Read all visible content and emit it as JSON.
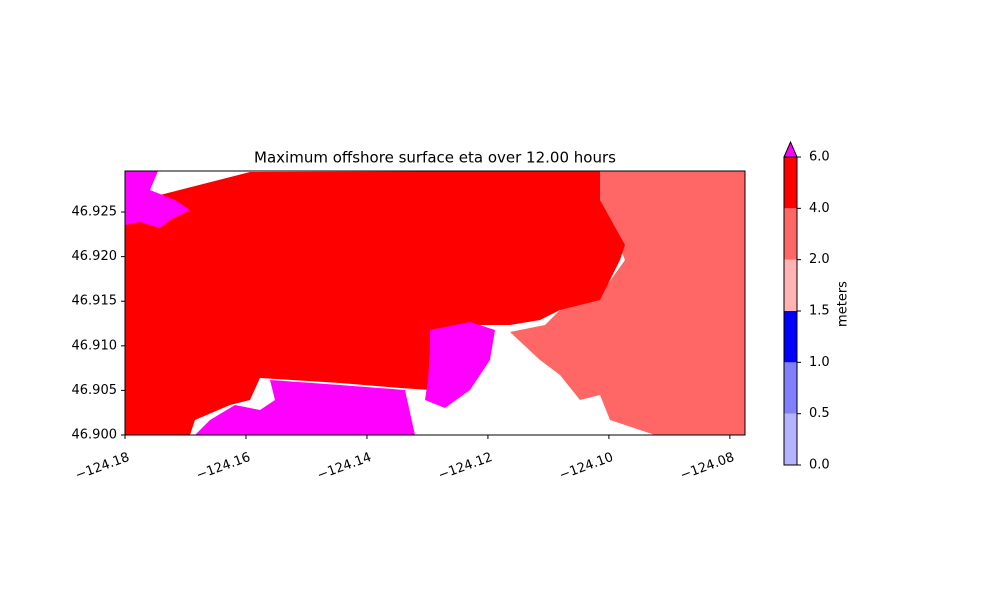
{
  "chart_data": {
    "type": "contour",
    "title": "Maximum offshore surface eta over 12.00 hours",
    "xlim": [
      -124.18,
      -124.0775
    ],
    "ylim": [
      46.9,
      46.9296
    ],
    "xticks": [
      {
        "value": -124.18,
        "label": "−124.18"
      },
      {
        "value": -124.16,
        "label": "−124.16"
      },
      {
        "value": -124.14,
        "label": "−124.14"
      },
      {
        "value": -124.12,
        "label": "−124.12"
      },
      {
        "value": -124.1,
        "label": "−124.10"
      },
      {
        "value": -124.08,
        "label": "−124.08"
      }
    ],
    "yticks": [
      {
        "value": 46.9,
        "label": "46.900"
      },
      {
        "value": 46.905,
        "label": "46.905"
      },
      {
        "value": 46.91,
        "label": "46.910"
      },
      {
        "value": 46.915,
        "label": "46.915"
      },
      {
        "value": 46.92,
        "label": "46.920"
      },
      {
        "value": 46.925,
        "label": "46.925"
      }
    ],
    "colorbar": {
      "label": "meters",
      "levels": [
        {
          "value": 0,
          "label": "0.0"
        },
        {
          "value": 0.5,
          "label": "0.5"
        },
        {
          "value": 1,
          "label": "1.0"
        },
        {
          "value": 1.5,
          "label": "1.5"
        },
        {
          "value": 2,
          "label": "2.0"
        },
        {
          "value": 4,
          "label": "4.0"
        },
        {
          "value": 6,
          "label": "6.0"
        }
      ],
      "colors": [
        "#b3b3ff",
        "#8080ff",
        "#0000ff",
        "#ffb3b3",
        "#ff6666",
        "#ff0000"
      ],
      "extend_color": "#ff00ff"
    }
  }
}
